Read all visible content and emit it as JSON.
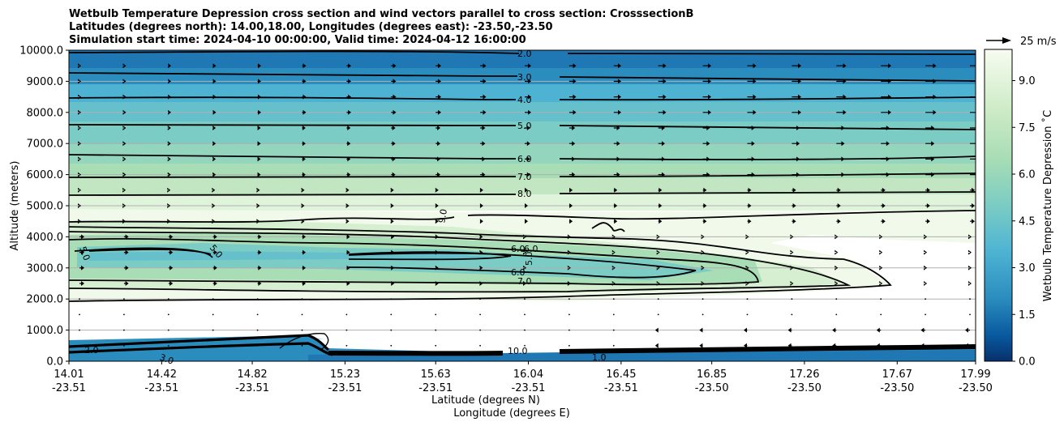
{
  "title_lines": [
    "Wetbulb Temperature Depression cross section and wind vectors parallel to cross section: CrosssectionB",
    "Latitudes (degrees north): 14.00,18.00, Longitudes (degrees east): -23.50,-23.50",
    "Simulation start time: 2024-04-10 00:00:00, Valid time: 2024-04-12 16:00:00"
  ],
  "chart_data": {
    "type": "contour",
    "title": "Wetbulb Temperature Depression cross section and wind vectors parallel to cross section: CrosssectionB",
    "ylabel": "Altitude (meters)",
    "xlabel_lat": "Latitude (degrees N)",
    "xlabel_lon": "Longitude (degrees E)",
    "ylim": [
      0,
      10000
    ],
    "y_ticks": [
      "0.0",
      "1000.0",
      "2000.0",
      "3000.0",
      "4000.0",
      "5000.0",
      "6000.0",
      "7000.0",
      "8000.0",
      "9000.0",
      "10000.0"
    ],
    "x_ticks": [
      {
        "lat": "14.01",
        "lon": "-23.51",
        "pos": 0.0
      },
      {
        "lat": "14.42",
        "lon": "-23.51",
        "pos": 0.1023
      },
      {
        "lat": "14.82",
        "lon": "-23.51",
        "pos": 0.2022
      },
      {
        "lat": "15.23",
        "lon": "-23.51",
        "pos": 0.3045
      },
      {
        "lat": "15.63",
        "lon": "-23.51",
        "pos": 0.4045
      },
      {
        "lat": "16.04",
        "lon": "-23.51",
        "pos": 0.5067
      },
      {
        "lat": "16.45",
        "lon": "-23.51",
        "pos": 0.609
      },
      {
        "lat": "16.85",
        "lon": "-23.50",
        "pos": 0.709
      },
      {
        "lat": "17.26",
        "lon": "-23.50",
        "pos": 0.8112
      },
      {
        "lat": "17.67",
        "lon": "-23.50",
        "pos": 0.9135
      },
      {
        "lat": "17.99",
        "lon": "-23.50",
        "pos": 1.0
      }
    ],
    "grid": "horizontal",
    "colorbar": {
      "label": "Wetbulb Temperature Depression ˚C",
      "range": [
        0,
        10
      ],
      "tick_labels": [
        "0.0",
        "1.5",
        "3.0",
        "4.5",
        "6.0",
        "7.5",
        "9.0"
      ],
      "tick_values": [
        0,
        1.5,
        3,
        4.5,
        6,
        7.5,
        9
      ],
      "colormap": "GnBu_r",
      "levels": 20
    },
    "quiver_key": {
      "label": "25 m/s",
      "speed": 25
    },
    "upper_contours": [
      {
        "label": "2.0",
        "value": 2,
        "alt": 9900
      },
      {
        "label": "3.0",
        "value": 3,
        "alt": 9250
      },
      {
        "label": "4.0",
        "value": 4,
        "alt": 8400
      },
      {
        "label": "5.0",
        "value": 5,
        "alt": 7600
      },
      {
        "label": "6.0",
        "value": 6,
        "alt": 6550
      },
      {
        "label": "7.0",
        "value": 7,
        "alt": 5900
      },
      {
        "label": "8.0",
        "value": 8,
        "alt": 5350
      }
    ],
    "mid_contours": [
      {
        "label": "9.0",
        "value": 9
      },
      {
        "label": "5.0",
        "value": 5
      },
      {
        "label": "6.0",
        "value": 6
      },
      {
        "label": "7.0",
        "value": 7
      }
    ],
    "surface_contours": [
      {
        "label": "2.0",
        "value": 2
      },
      {
        "label": "3.0",
        "value": 3
      },
      {
        "label": "1.0",
        "value": 1
      },
      {
        "label": "10.0",
        "value": 10
      }
    ],
    "wind_vector_rows_alt": [
      9500,
      9000,
      8500,
      8000,
      7500,
      7000,
      6500,
      6000,
      5500,
      5000,
      4500,
      4000,
      3500,
      3000,
      2500,
      2000,
      1500,
      1000,
      500
    ]
  },
  "colors": {
    "grid": "#b0b0b0",
    "contour": "#000000"
  }
}
